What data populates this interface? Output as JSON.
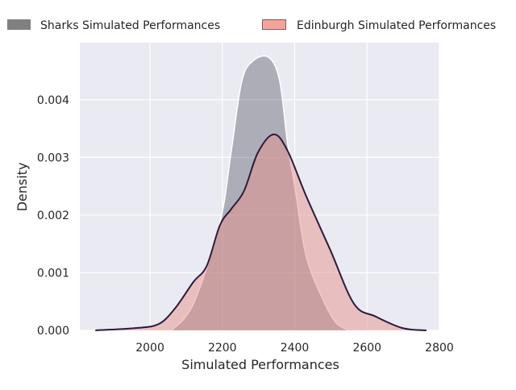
{
  "chart_data": {
    "type": "area",
    "title": "",
    "xlabel": "Simulated Performances",
    "ylabel": "Density",
    "xlim": [
      1806,
      2800
    ],
    "ylim": [
      0,
      0.00499
    ],
    "xticks": [
      2000,
      2200,
      2400,
      2600,
      2800
    ],
    "xtick_labels": [
      "2000",
      "2200",
      "2400",
      "2600",
      "2800"
    ],
    "yticks": [
      0,
      0.001,
      0.002,
      0.003,
      0.004
    ],
    "ytick_labels": [
      "0.000",
      "0.001",
      "0.002",
      "0.003",
      "0.004"
    ],
    "grid": true,
    "legend_placement": "top",
    "series": [
      {
        "name": "Sharks Simulated Performances",
        "legend_color": "#808080",
        "fill": "#3b3b4a",
        "line": "#ffffff",
        "x": [
          2060,
          2120,
          2193,
          2224,
          2253,
          2282,
          2327,
          2358,
          2380,
          2402,
          2431,
          2476,
          2513,
          2549
        ],
        "y": [
          0,
          0.00046,
          0.00186,
          0.00308,
          0.0043,
          0.00466,
          0.00474,
          0.00434,
          0.00326,
          0.00242,
          0.0013,
          0.00056,
          0.00014,
          0
        ]
      },
      {
        "name": "Edinburgh Simulated Performances",
        "legend_color": "#f4a497",
        "fill": "#e8928c",
        "line": "#2a1b3d",
        "x": [
          1849,
          1960,
          2024,
          2069,
          2120,
          2157,
          2193,
          2224,
          2260,
          2298,
          2342,
          2380,
          2431,
          2498,
          2564,
          2624,
          2698,
          2764
        ],
        "y": [
          0,
          4e-05,
          0.00011,
          0.00038,
          0.00084,
          0.00112,
          0.00182,
          0.0021,
          0.00242,
          0.00308,
          0.0034,
          0.00312,
          0.00234,
          0.0014,
          0.00046,
          0.00024,
          4e-05,
          0
        ]
      }
    ]
  }
}
